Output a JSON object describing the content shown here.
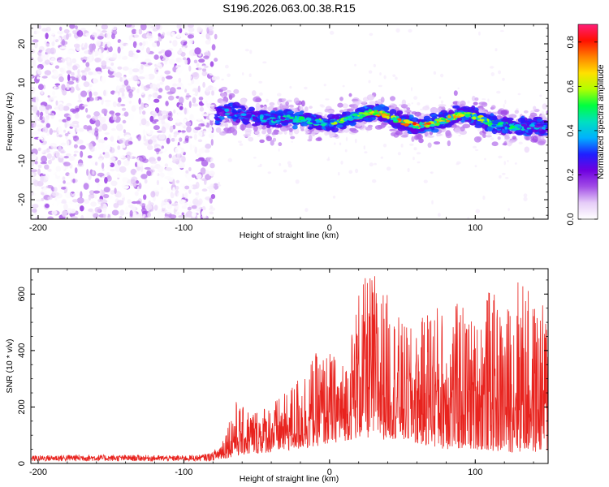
{
  "chart_data": [
    {
      "type": "heatmap",
      "title": "S196.2026.063.00.38.R15",
      "xlabel": "Height of straight line (km)",
      "ylabel": "Frequency (Hz)",
      "xlim": [
        -205,
        150
      ],
      "ylim": [
        -25,
        25
      ],
      "x_ticks": [
        -200,
        -100,
        0,
        100
      ],
      "x_tick_labels": [
        "-200",
        "-100",
        "0",
        "100"
      ],
      "y_ticks": [
        -20,
        -10,
        0,
        10,
        20
      ],
      "y_tick_labels": [
        "-20",
        "-10",
        "0",
        "10",
        "20"
      ],
      "noise_region_x": [
        -205,
        -78
      ],
      "signal_start_x": -78,
      "ridge": {
        "x": [
          -78,
          -70,
          -60,
          -50,
          -40,
          -30,
          -20,
          -10,
          0,
          10,
          20,
          30,
          40,
          50,
          60,
          70,
          80,
          90,
          100,
          110,
          120,
          130,
          140,
          150
        ],
        "freq": [
          1.5,
          2.5,
          2.0,
          1.0,
          0.5,
          1.0,
          0.5,
          0.0,
          -0.5,
          0.5,
          1.5,
          2.5,
          1.5,
          0.0,
          -1.0,
          -0.5,
          0.5,
          2.0,
          1.5,
          -0.5,
          -1.0,
          -1.5,
          -1.0,
          -1.5
        ],
        "amplitude": [
          0.3,
          0.4,
          0.4,
          0.4,
          0.5,
          0.5,
          0.55,
          0.6,
          0.6,
          0.65,
          0.7,
          0.85,
          0.75,
          0.8,
          0.9,
          0.85,
          0.75,
          0.7,
          0.7,
          0.6,
          0.55,
          0.5,
          0.45,
          0.4
        ]
      },
      "colorbar": {
        "label": "Normalized spectral amplitude",
        "range": [
          0,
          0.88
        ],
        "ticks": [
          0.0,
          0.2,
          0.4,
          0.6,
          0.8
        ],
        "tick_labels": [
          "0.0",
          "0.2",
          "0.4",
          "0.6",
          "0.8"
        ],
        "colors": [
          "#ffffff",
          "#e6cdf8",
          "#a24ee6",
          "#6f00e0",
          "#1f1fff",
          "#00b0ff",
          "#00e0c0",
          "#00ff40",
          "#b0ff00",
          "#ffe000",
          "#ff8000",
          "#ff1000",
          "#ff1e78"
        ]
      }
    },
    {
      "type": "line",
      "title": "",
      "xlabel": "Height of straight line (km)",
      "ylabel": "SNR (10 * v/v)",
      "xlim": [
        -205,
        150
      ],
      "ylim": [
        0,
        690
      ],
      "x_ticks": [
        -200,
        -100,
        0,
        100
      ],
      "x_tick_labels": [
        "-200",
        "-100",
        "0",
        "100"
      ],
      "y_ticks": [
        0,
        200,
        400,
        600
      ],
      "y_tick_labels": [
        "0",
        "200",
        "400",
        "600"
      ],
      "series": [
        {
          "name": "SNR",
          "color": "#e8231e",
          "x": [
            -205,
            -190,
            -170,
            -150,
            -130,
            -110,
            -90,
            -80,
            -75,
            -70,
            -65,
            -60,
            -50,
            -40,
            -30,
            -20,
            -10,
            0,
            10,
            15,
            20,
            30,
            35,
            40,
            50,
            60,
            70,
            80,
            90,
            100,
            110,
            120,
            130,
            140,
            150
          ],
          "envelope_low": [
            8,
            8,
            8,
            8,
            8,
            8,
            8,
            10,
            15,
            20,
            25,
            30,
            35,
            40,
            45,
            50,
            60,
            70,
            80,
            85,
            90,
            90,
            80,
            90,
            80,
            70,
            60,
            50,
            50,
            50,
            45,
            40,
            40,
            40,
            40
          ],
          "envelope_high": [
            28,
            30,
            32,
            30,
            30,
            28,
            30,
            40,
            80,
            150,
            230,
            200,
            200,
            220,
            250,
            330,
            390,
            400,
            360,
            480,
            630,
            690,
            640,
            600,
            500,
            470,
            600,
            540,
            580,
            510,
            630,
            530,
            690,
            580,
            560
          ]
        }
      ]
    }
  ]
}
